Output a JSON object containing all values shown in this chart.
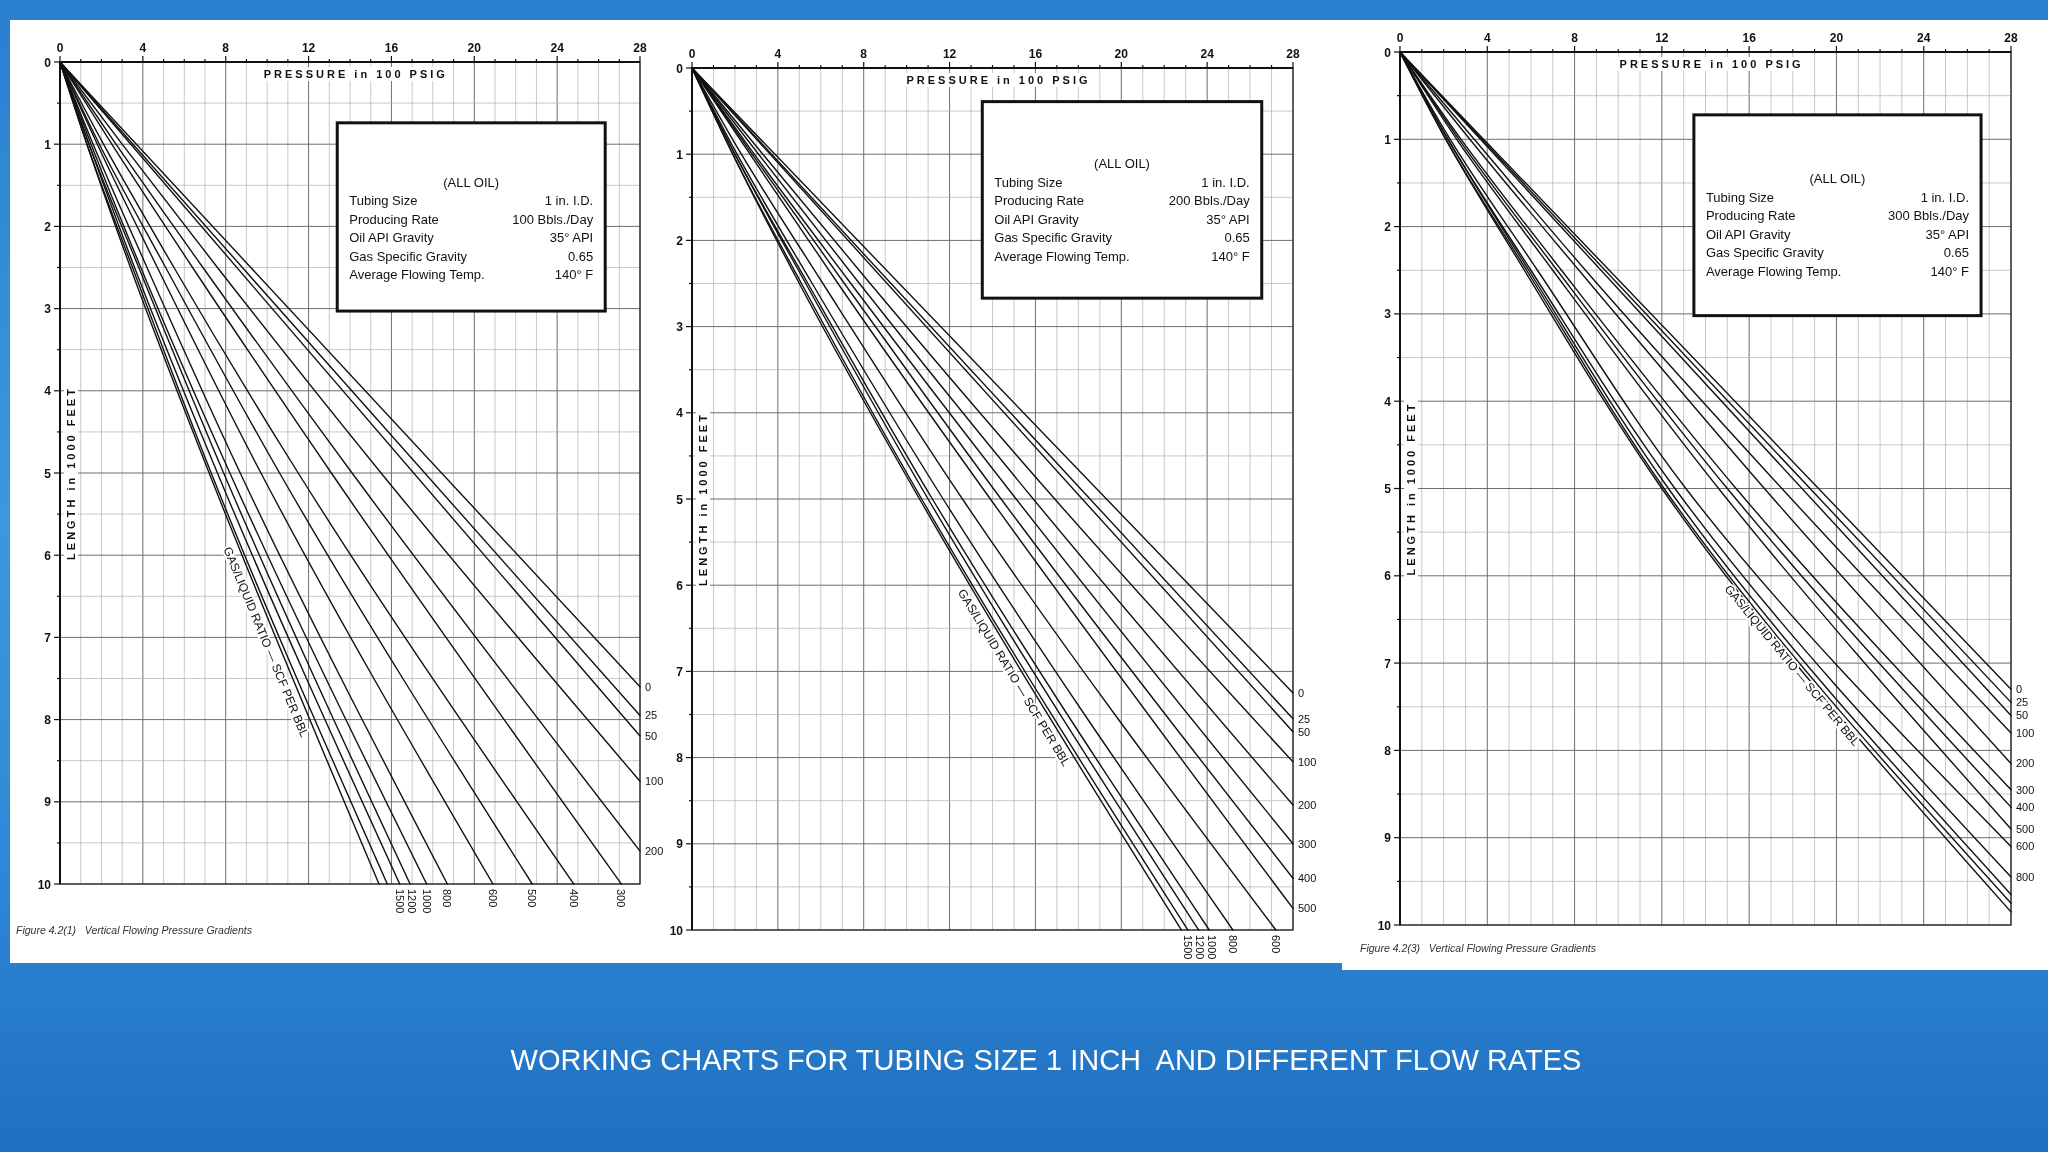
{
  "chart_data": [
    {
      "type": "line",
      "xlabel": "PRESSURE in 100 PSIG",
      "ylabel": "LENGTH in 1000 FEET",
      "legend_title": "GAS/LIQUID RATIO — SCF PER BBL",
      "annotations": [
        "(ALL OIL)\nTubing Size\t1 in. I.D.\nProducing Rate\t100 Bbls./Day\nOil API Gravity\t35° API\nGas Specific Gravity\t0.65\nAverage Flowing Temp.\t140° F",
        "Figure 4.2(1)   Vertical Flowing Pressure Gradients"
      ],
      "xlim": [
        0,
        28
      ],
      "ylim": [
        10,
        0
      ],
      "xticks": [
        0,
        {
          "value": 1,
          "label": null
        },
        {
          "value": 2,
          "label": null
        },
        {
          "value": 3,
          "label": null
        },
        4,
        {
          "value": 5,
          "label": null
        },
        {
          "value": 6,
          "label": null
        },
        {
          "value": 7,
          "label": null
        },
        8,
        {
          "value": 9,
          "label": null
        },
        {
          "value": 10,
          "label": null
        },
        {
          "value": 11,
          "label": null
        },
        12,
        {
          "value": 13,
          "label": null
        },
        {
          "value": 14,
          "label": null
        },
        {
          "value": 15,
          "label": null
        },
        16,
        {
          "value": 17,
          "label": null
        },
        {
          "value": 18,
          "label": null
        },
        {
          "value": 19,
          "label": null
        },
        20,
        {
          "value": 21,
          "label": null
        },
        {
          "value": 22,
          "label": null
        },
        {
          "value": 23,
          "label": null
        },
        24,
        {
          "value": 25,
          "label": null
        },
        {
          "value": 26,
          "label": null
        },
        {
          "value": 27,
          "label": null
        },
        28
      ],
      "yticks": [
        0,
        {
          "value": 0.5,
          "label": null
        },
        1,
        {
          "value": 1.5,
          "label": null
        },
        2,
        {
          "value": 2.5,
          "label": null
        },
        3,
        {
          "value": 3.5,
          "label": null
        },
        4,
        {
          "value": 4.5,
          "label": null
        },
        5,
        {
          "value": 5.5,
          "label": null
        },
        6,
        {
          "value": 6.5,
          "label": null
        },
        7,
        {
          "value": 7.5,
          "label": null
        },
        8,
        {
          "value": 8.5,
          "label": null
        },
        9,
        {
          "value": 9.5,
          "label": null
        },
        10
      ],
      "grid": true,
      "series": [
        {
          "name": "0",
          "color": "#111111",
          "x": [
            0,
            28
          ],
          "values": [
            0,
            7.6
          ]
        },
        {
          "name": "25",
          "color": "#111111",
          "x": [
            0,
            28
          ],
          "values": [
            0,
            7.95
          ]
        },
        {
          "name": "50",
          "color": "#111111",
          "x": [
            0,
            28
          ],
          "values": [
            0,
            8.2
          ]
        },
        {
          "name": "100",
          "color": "#111111",
          "x": [
            0,
            3,
            7.6,
            15.5,
            28
          ],
          "values": [
            0,
            1,
            2.5,
            5,
            8.75
          ]
        },
        {
          "name": "200",
          "color": "#111111",
          "x": [
            0,
            2.7,
            6.9,
            14.1,
            28
          ],
          "values": [
            0,
            1,
            2.5,
            5,
            9.6
          ]
        },
        {
          "name": "300",
          "color": "#111111",
          "x": [
            0,
            2.5,
            6.4,
            13.1,
            27.1
          ],
          "values": [
            0,
            1,
            2.5,
            5,
            10
          ]
        },
        {
          "name": "400",
          "color": "#111111",
          "x": [
            0,
            2.1,
            5.5,
            11.5,
            24.8
          ],
          "values": [
            0,
            1,
            2.5,
            5,
            10
          ]
        },
        {
          "name": "500",
          "color": "#111111",
          "x": [
            0,
            1.9,
            5.1,
            10.6,
            22.8
          ],
          "values": [
            0,
            1,
            2.5,
            5,
            10
          ]
        },
        {
          "name": "600",
          "color": "#111111",
          "x": [
            0,
            1.8,
            4.7,
            9.7,
            20.9
          ],
          "values": [
            0,
            1,
            2.5,
            5,
            10
          ]
        },
        {
          "name": "800",
          "color": "#111111",
          "x": [
            0,
            1.6,
            4.2,
            8.7,
            18.7
          ],
          "values": [
            0,
            1,
            2.5,
            5,
            10
          ]
        },
        {
          "name": "1000",
          "color": "#111111",
          "x": [
            0,
            1.5,
            3.9,
            8.2,
            17.7
          ],
          "values": [
            0,
            1,
            2.5,
            5,
            10
          ]
        },
        {
          "name": "1200",
          "color": "#111111",
          "x": [
            0,
            1.4,
            3.8,
            7.9,
            16.9
          ],
          "values": [
            0,
            1,
            2.5,
            5,
            10
          ]
        },
        {
          "name": "1500",
          "color": "#111111",
          "x": [
            0,
            1.4,
            3.6,
            7.6,
            16.4
          ],
          "values": [
            0,
            1,
            2.5,
            5,
            10
          ]
        },
        {
          "color": "#111111",
          "x": [
            0,
            1.3,
            3.5,
            7.3,
            15.8
          ],
          "values": [
            0,
            1,
            2.5,
            5,
            10
          ]
        },
        {
          "color": "#111111",
          "x": [
            0,
            1.3,
            3.4,
            7.2,
            15.4
          ],
          "values": [
            0,
            1,
            2.5,
            5,
            10
          ]
        }
      ]
    },
    {
      "type": "line",
      "xlabel": "PRESSURE in 100 PSIG",
      "ylabel": "LENGTH in 1000 FEET",
      "legend_title": "GAS/LIQUID RATIO — SCF PER BBL",
      "annotations": [
        "(ALL OIL)\nTubing Size\t1 in. I.D.\nProducing Rate\t200 Bbls./Day\nOil API Gravity\t35° API\nGas Specific Gravity\t0.65\nAverage Flowing Temp.\t140° F"
      ],
      "xlim": [
        0,
        28
      ],
      "ylim": [
        10,
        0
      ],
      "xticks": [
        0,
        {
          "value": 1,
          "label": null
        },
        {
          "value": 2,
          "label": null
        },
        {
          "value": 3,
          "label": null
        },
        4,
        {
          "value": 5,
          "label": null
        },
        {
          "value": 6,
          "label": null
        },
        {
          "value": 7,
          "label": null
        },
        8,
        {
          "value": 9,
          "label": null
        },
        {
          "value": 10,
          "label": null
        },
        {
          "value": 11,
          "label": null
        },
        12,
        {
          "value": 13,
          "label": null
        },
        {
          "value": 14,
          "label": null
        },
        {
          "value": 15,
          "label": null
        },
        16,
        {
          "value": 17,
          "label": null
        },
        {
          "value": 18,
          "label": null
        },
        {
          "value": 19,
          "label": null
        },
        20,
        {
          "value": 21,
          "label": null
        },
        {
          "value": 22,
          "label": null
        },
        {
          "value": 23,
          "label": null
        },
        24,
        {
          "value": 25,
          "label": null
        },
        {
          "value": 26,
          "label": null
        },
        {
          "value": 27,
          "label": null
        },
        28
      ],
      "yticks": [
        0,
        {
          "value": 0.5,
          "label": null
        },
        1,
        {
          "value": 1.5,
          "label": null
        },
        2,
        {
          "value": 2.5,
          "label": null
        },
        3,
        {
          "value": 3.5,
          "label": null
        },
        4,
        {
          "value": 4.5,
          "label": null
        },
        5,
        {
          "value": 5.5,
          "label": null
        },
        6,
        {
          "value": 6.5,
          "label": null
        },
        7,
        {
          "value": 7.5,
          "label": null
        },
        8,
        {
          "value": 8.5,
          "label": null
        },
        9,
        {
          "value": 9.5,
          "label": null
        },
        10
      ],
      "grid": true,
      "series": [
        {
          "name": "0",
          "color": "#111111",
          "x": [
            0,
            28
          ],
          "values": [
            0,
            7.25
          ]
        },
        {
          "name": "25",
          "color": "#111111",
          "x": [
            0,
            28
          ],
          "values": [
            0,
            7.55
          ]
        },
        {
          "name": "50",
          "color": "#111111",
          "x": [
            0,
            28
          ],
          "values": [
            0,
            7.7
          ]
        },
        {
          "name": "100",
          "color": "#111111",
          "x": [
            0,
            3.3,
            8.3,
            16.9,
            28
          ],
          "values": [
            0,
            1,
            2.5,
            5,
            8.05
          ]
        },
        {
          "name": "200",
          "color": "#111111",
          "x": [
            0,
            3.1,
            7.8,
            15.9,
            28
          ],
          "values": [
            0,
            1,
            2.5,
            5,
            8.55
          ]
        },
        {
          "name": "300",
          "color": "#111111",
          "x": [
            0,
            2.9,
            7.4,
            15.1,
            28
          ],
          "values": [
            0,
            1,
            2.5,
            5,
            9
          ]
        },
        {
          "name": "400",
          "color": "#111111",
          "x": [
            0,
            2.8,
            7.1,
            14.4,
            28
          ],
          "values": [
            0,
            1,
            2.5,
            5,
            9.4
          ]
        },
        {
          "name": "500",
          "color": "#111111",
          "x": [
            0,
            2.7,
            6.8,
            13.9,
            28
          ],
          "values": [
            0,
            1,
            2.5,
            5,
            9.75
          ]
        },
        {
          "name": "600",
          "color": "#111111",
          "x": [
            0,
            2.3,
            6.1,
            12.6,
            27.2
          ],
          "values": [
            0,
            1,
            2.5,
            5,
            10
          ]
        },
        {
          "name": "800",
          "color": "#111111",
          "x": [
            0,
            2.1,
            5.6,
            11.7,
            25.2
          ],
          "values": [
            0,
            1,
            2.5,
            5,
            10
          ]
        },
        {
          "name": "1000",
          "color": "#111111",
          "x": [
            0,
            2,
            5.4,
            11.2,
            24.1
          ],
          "values": [
            0,
            1,
            2.5,
            5,
            10
          ]
        },
        {
          "name": "1200",
          "color": "#111111",
          "x": [
            0,
            2,
            5.3,
            11,
            23.6
          ],
          "values": [
            0,
            1,
            2.5,
            5,
            10
          ]
        },
        {
          "name": "1500",
          "color": "#111111",
          "x": [
            0,
            1.9,
            5.1,
            10.7,
            23.1
          ],
          "values": [
            0,
            1,
            2.5,
            5,
            10
          ]
        },
        {
          "color": "#111111",
          "x": [
            0,
            1.9,
            5,
            10.6,
            22.8
          ],
          "values": [
            0,
            1,
            2.5,
            5,
            10
          ]
        }
      ]
    },
    {
      "type": "line",
      "xlabel": "PRESSURE in 100 PSIG",
      "ylabel": "LENGTH in 1000 FEET",
      "legend_title": "GAS/LIQUID RATIO — SCF PER BBL",
      "annotations": [
        "(ALL OIL)\nTubing Size\t1 in. I.D.\nProducing Rate\t300 Bbls./Day\nOil API Gravity\t35° API\nGas Specific Gravity\t0.65\nAverage Flowing Temp.\t140° F",
        "Figure 4.2(3)   Vertical Flowing Pressure Gradients"
      ],
      "xlim": [
        0,
        28
      ],
      "ylim": [
        10,
        0
      ],
      "xticks": [
        0,
        {
          "value": 1,
          "label": null
        },
        {
          "value": 2,
          "label": null
        },
        {
          "value": 3,
          "label": null
        },
        4,
        {
          "value": 5,
          "label": null
        },
        {
          "value": 6,
          "label": null
        },
        {
          "value": 7,
          "label": null
        },
        8,
        {
          "value": 9,
          "label": null
        },
        {
          "value": 10,
          "label": null
        },
        {
          "value": 11,
          "label": null
        },
        12,
        {
          "value": 13,
          "label": null
        },
        {
          "value": 14,
          "label": null
        },
        {
          "value": 15,
          "label": null
        },
        16,
        {
          "value": 17,
          "label": null
        },
        {
          "value": 18,
          "label": null
        },
        {
          "value": 19,
          "label": null
        },
        20,
        {
          "value": 21,
          "label": null
        },
        {
          "value": 22,
          "label": null
        },
        {
          "value": 23,
          "label": null
        },
        24,
        {
          "value": 25,
          "label": null
        },
        {
          "value": 26,
          "label": null
        },
        {
          "value": 27,
          "label": null
        },
        28
      ],
      "yticks": [
        0,
        {
          "value": 0.5,
          "label": null
        },
        1,
        {
          "value": 1.5,
          "label": null
        },
        2,
        {
          "value": 2.5,
          "label": null
        },
        3,
        {
          "value": 3.5,
          "label": null
        },
        4,
        {
          "value": 4.5,
          "label": null
        },
        5,
        {
          "value": 5.5,
          "label": null
        },
        6,
        {
          "value": 6.5,
          "label": null
        },
        7,
        {
          "value": 7.5,
          "label": null
        },
        8,
        {
          "value": 8.5,
          "label": null
        },
        9,
        {
          "value": 9.5,
          "label": null
        },
        10
      ],
      "grid": true,
      "series": [
        {
          "name": "0",
          "color": "#111111",
          "x": [
            0,
            28
          ],
          "values": [
            0,
            7.3
          ]
        },
        {
          "name": "25",
          "color": "#111111",
          "x": [
            0,
            28
          ],
          "values": [
            0,
            7.45
          ]
        },
        {
          "name": "50",
          "color": "#111111",
          "x": [
            0,
            28
          ],
          "values": [
            0,
            7.6
          ]
        },
        {
          "name": "100",
          "color": "#111111",
          "x": [
            0,
            3.4,
            8.5,
            17.5,
            28
          ],
          "values": [
            0,
            1,
            2.5,
            5,
            7.8
          ]
        },
        {
          "name": "200",
          "color": "#111111",
          "x": [
            0,
            3.2,
            8.2,
            16.7,
            28
          ],
          "values": [
            0,
            1,
            2.5,
            5,
            8.15
          ]
        },
        {
          "name": "300",
          "color": "#111111",
          "x": [
            0,
            2.8,
            7.4,
            15.4,
            28
          ],
          "values": [
            0,
            1,
            2.5,
            5,
            8.45
          ]
        },
        {
          "name": "400",
          "color": "#111111",
          "x": [
            0,
            2.7,
            7.2,
            15,
            28
          ],
          "values": [
            0,
            1,
            2.5,
            5,
            8.65
          ]
        },
        {
          "name": "500",
          "color": "#111111",
          "x": [
            0,
            2.6,
            7,
            14.6,
            28
          ],
          "values": [
            0,
            1,
            2.5,
            5,
            8.9
          ]
        },
        {
          "name": "600",
          "color": "#111111",
          "x": [
            0,
            2.3,
            6.3,
            13.1,
            28
          ],
          "values": [
            0,
            1,
            2.5,
            5,
            9.1
          ]
        },
        {
          "name": "800",
          "color": "#111111",
          "x": [
            0,
            2.2,
            6,
            12.6,
            28
          ],
          "values": [
            0,
            1,
            2.5,
            5,
            9.45
          ]
        },
        {
          "color": "#111111",
          "x": [
            0,
            2.2,
            5.9,
            12.3,
            28
          ],
          "values": [
            0,
            1,
            2.5,
            5,
            9.65
          ]
        },
        {
          "color": "#111111",
          "x": [
            0,
            2.1,
            5.8,
            12.1,
            28
          ],
          "values": [
            0,
            1,
            2.5,
            5,
            9.75
          ]
        },
        {
          "color": "#111111",
          "x": [
            0,
            2.1,
            5.7,
            12,
            28
          ],
          "values": [
            0,
            1,
            2.5,
            5,
            9.85
          ]
        }
      ]
    },
    {
      "type": "other",
      "title": "WORKING CHARTS FOR TUBING SIZE 1 INCH  AND DIFFERENT FLOW RATES"
    }
  ]
}
